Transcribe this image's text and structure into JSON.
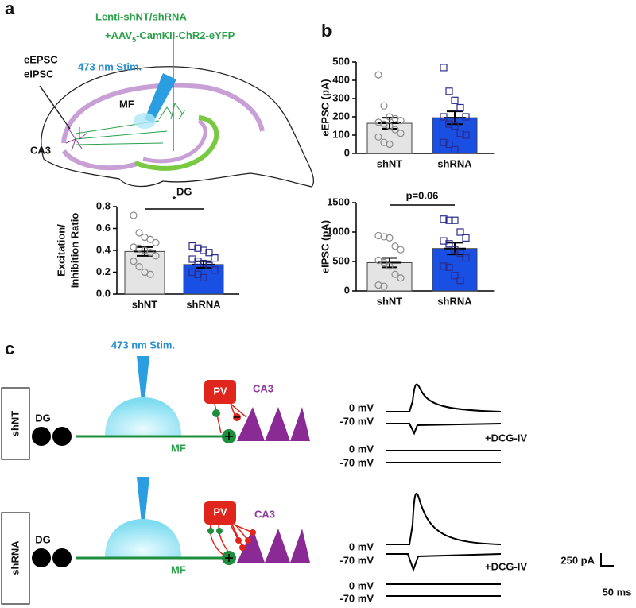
{
  "panel_labels": [
    "a",
    "b",
    "c"
  ],
  "panel_a": {
    "virus_line1": "Lenti-shNT/shRNA",
    "virus_line2_pre": "+AAV",
    "virus_line2_sub": "5",
    "virus_line2_post": "-CamKII-ChR2-eYFP",
    "recordings": [
      "eEPSC",
      "eIPSC"
    ],
    "stim": "473 nm Stim.",
    "mf": "MF",
    "ca3": "CA3",
    "dg": "DG"
  },
  "panel_c": {
    "stim": "473 nm Stim.",
    "rows": [
      {
        "name": "shNT",
        "dg": "DG",
        "mf": "MF",
        "pv": "PV",
        "ca3": "CA3",
        "traces": [
          "0 mV",
          "-70 mV",
          "0 mV",
          "-70 mV"
        ],
        "drug": "+DCG-IV"
      },
      {
        "name": "shRNA",
        "dg": "DG",
        "mf": "MF",
        "pv": "PV",
        "ca3": "CA3",
        "traces": [
          "0 mV",
          "-70 mV",
          "0 mV",
          "-70 mV"
        ],
        "drug": "+DCG-IV"
      }
    ],
    "scale_y": "250 pA",
    "scale_x": "50 ms"
  },
  "chart_data": [
    {
      "type": "bar",
      "ylabel": [
        "Excitation/",
        "Inhibition Ratio"
      ],
      "categories": [
        "shNT",
        "shRNA"
      ],
      "values": [
        0.39,
        0.27
      ],
      "errors": [
        0.04,
        0.03
      ],
      "points": [
        [
          0.72,
          0.56,
          0.52,
          0.5,
          0.47,
          0.43,
          0.42,
          0.4,
          0.38,
          0.35,
          0.3,
          0.25,
          0.2,
          0.18
        ],
        [
          0.44,
          0.42,
          0.4,
          0.38,
          0.33,
          0.32,
          0.3,
          0.28,
          0.26,
          0.22,
          0.2,
          0.18,
          0.15
        ]
      ],
      "bar_colors": [
        "#e4e4e4",
        "#1a4fe3"
      ],
      "point_colors": [
        "#8a8a8a",
        "#2b2b8f"
      ],
      "markers": [
        "circle",
        "square"
      ],
      "annotation": "*",
      "ylim": [
        0,
        0.8
      ],
      "yticks": [
        {
          "value": 0,
          "label": "0.0"
        },
        0.2,
        0.4,
        0.6,
        0.8
      ]
    },
    {
      "type": "bar",
      "ylabel": "eEPSC (pA)",
      "categories": [
        "shNT",
        "shRNA"
      ],
      "values": [
        165,
        195
      ],
      "errors": [
        30,
        35
      ],
      "points": [
        [
          430,
          260,
          200,
          190,
          180,
          170,
          160,
          150,
          130,
          110,
          90,
          60,
          50
        ],
        [
          470,
          340,
          290,
          250,
          200,
          200,
          160,
          150,
          110,
          100,
          60,
          50,
          20
        ]
      ],
      "bar_colors": [
        "#e4e4e4",
        "#1a4fe3"
      ],
      "point_colors": [
        "#8a8a8a",
        "#2b2b8f"
      ],
      "markers": [
        "circle",
        "square"
      ],
      "ylim": [
        0,
        500
      ],
      "yticks": [
        0,
        100,
        200,
        300,
        400,
        500
      ]
    },
    {
      "type": "bar",
      "ylabel": "eIPSC (pA)",
      "categories": [
        "shNT",
        "shRNA"
      ],
      "values": [
        480,
        720
      ],
      "errors": [
        80,
        100
      ],
      "points": [
        [
          940,
          920,
          900,
          760,
          700,
          520,
          480,
          420,
          280,
          220,
          100,
          80
        ],
        [
          1220,
          1200,
          1200,
          1000,
          900,
          850,
          800,
          700,
          640,
          560,
          420,
          400,
          260,
          180
        ]
      ],
      "bar_colors": [
        "#e4e4e4",
        "#1a4fe3"
      ],
      "point_colors": [
        "#8a8a8a",
        "#2b2b8f"
      ],
      "markers": [
        "circle",
        "square"
      ],
      "annotation": "p=0.06",
      "ylim": [
        0,
        1500
      ],
      "yticks": [
        0,
        500,
        1000,
        1500
      ]
    }
  ]
}
